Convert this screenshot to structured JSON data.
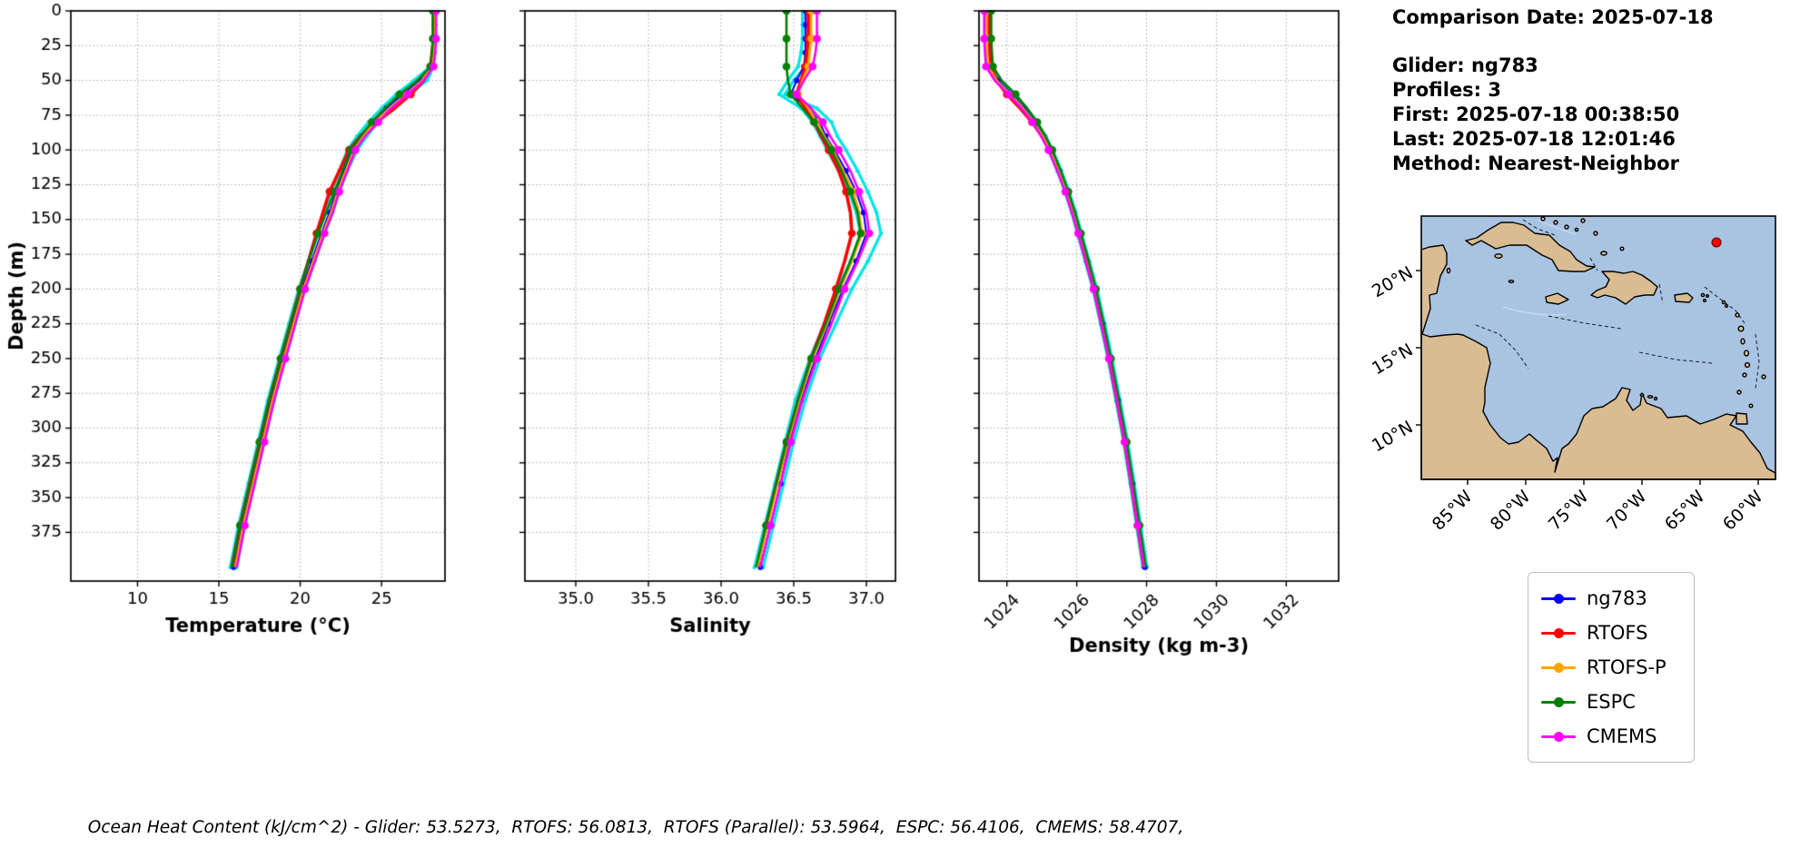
{
  "info": {
    "comparison_date": "Comparison Date: 2025-07-18",
    "glider": "Glider: ng783",
    "profiles": "Profiles: 3",
    "first": "First: 2025-07-18 00:38:50",
    "last": "Last: 2025-07-18 12:01:46",
    "method": "Method: Nearest-Neighbor"
  },
  "caption": "Ocean Heat Content (kJ/cm^2) - Glider: 53.5273,  RTOFS: 56.0813,  RTOFS (Parallel): 53.5964,  ESPC: 56.4106,  CMEMS: 58.4707,",
  "legend": {
    "items": [
      {
        "label": "ng783",
        "color": "#0000ff"
      },
      {
        "label": "RTOFS",
        "color": "#ff0000"
      },
      {
        "label": "RTOFS-P",
        "color": "#ffa500"
      },
      {
        "label": "ESPC",
        "color": "#008000"
      },
      {
        "label": "CMEMS",
        "color": "#ff00ff"
      }
    ]
  },
  "map": {
    "lat_ticks": [
      "20°N",
      "15°N",
      "10°N"
    ],
    "lon_ticks": [
      "85°W",
      "80°W",
      "75°W",
      "70°W",
      "65°W",
      "60°W"
    ],
    "extent": {
      "lon_min": -89,
      "lon_max": -58.5,
      "lat_min": 6.5,
      "lat_max": 23.5
    },
    "marker": {
      "lon": -63.6,
      "lat": 21.8,
      "color": "#ff0000"
    },
    "ocean_color": "#a9c3e2",
    "land_color": "#d9bc92"
  },
  "chart_data": [
    {
      "type": "line",
      "title": "",
      "xlabel": "Temperature (°C)",
      "ylabel": "Depth (m)",
      "xlim": [
        5.9,
        28.9
      ],
      "ylim": [
        0,
        410
      ],
      "xticks": [
        10,
        15,
        20,
        25
      ],
      "xtick_labels": [
        "10",
        "15",
        "20",
        "25"
      ],
      "yticks": [
        0,
        25,
        50,
        75,
        100,
        125,
        150,
        175,
        200,
        225,
        250,
        275,
        300,
        325,
        350,
        375
      ],
      "show_ytick_labels": true,
      "xtick_rotation": 0,
      "grid": true,
      "depths": [
        0,
        10,
        20,
        30,
        40,
        50,
        60,
        70,
        80,
        90,
        100,
        115,
        130,
        145,
        160,
        180,
        200,
        225,
        250,
        280,
        310,
        340,
        370,
        400
      ],
      "series": [
        {
          "name": "glider-profile-a",
          "in_legend": false,
          "color": "#00e5e5",
          "line_width": 3.2,
          "marker_size": 2.2,
          "marker_every": 1,
          "values": [
            28.3,
            28.3,
            28.3,
            28.25,
            28.2,
            27.8,
            26.7,
            25.6,
            24.8,
            24.1,
            23.5,
            22.9,
            22.4,
            22.0,
            21.5,
            20.9,
            20.3,
            19.7,
            19.1,
            18.4,
            17.8,
            17.2,
            16.6,
            16.1
          ]
        },
        {
          "name": "glider-profile-b",
          "in_legend": false,
          "color": "#00e5e5",
          "line_width": 3.2,
          "marker_size": 2.2,
          "marker_every": 1,
          "values": [
            28.2,
            28.2,
            28.2,
            28.15,
            28.0,
            27.0,
            25.9,
            25.0,
            24.2,
            23.5,
            22.9,
            22.4,
            21.9,
            21.5,
            21.1,
            20.5,
            19.9,
            19.3,
            18.7,
            18.0,
            17.4,
            16.8,
            16.2,
            15.7
          ]
        },
        {
          "name": "ng783",
          "in_legend": true,
          "color": "#0000ff",
          "line_width": 2.0,
          "marker_size": 3.1,
          "marker_every": 1,
          "values": [
            28.25,
            28.25,
            28.25,
            28.2,
            28.1,
            27.4,
            26.3,
            25.3,
            24.5,
            23.8,
            23.2,
            22.7,
            22.2,
            21.8,
            21.3,
            20.7,
            20.1,
            19.5,
            18.9,
            18.2,
            17.6,
            17.0,
            16.4,
            15.9
          ]
        },
        {
          "name": "RTOFS",
          "in_legend": true,
          "color": "#ff0000",
          "line_width": 3.6,
          "marker_size": 4.3,
          "marker_every": 2,
          "values": [
            28.2,
            28.2,
            28.2,
            28.1,
            28.0,
            27.6,
            26.8,
            25.8,
            24.7,
            23.7,
            23.0,
            22.4,
            21.8,
            21.4,
            21.0,
            20.5,
            20.0,
            19.4,
            18.8,
            18.1,
            17.5,
            16.9,
            16.3,
            15.8
          ]
        },
        {
          "name": "RTOFS-P",
          "in_legend": true,
          "color": "#ffa500",
          "line_width": 2.6,
          "marker_size": 4.3,
          "marker_every": 2,
          "values": [
            28.3,
            28.3,
            28.3,
            28.2,
            28.1,
            27.5,
            26.5,
            25.5,
            24.6,
            23.9,
            23.3,
            22.8,
            22.3,
            21.9,
            21.4,
            20.8,
            20.2,
            19.6,
            19.0,
            18.3,
            17.7,
            17.1,
            16.5,
            16.0
          ]
        },
        {
          "name": "ESPC",
          "in_legend": true,
          "color": "#008000",
          "line_width": 2.6,
          "marker_size": 4.3,
          "marker_every": 2,
          "values": [
            28.15,
            28.15,
            28.15,
            28.1,
            28.0,
            27.2,
            26.1,
            25.2,
            24.4,
            23.7,
            23.1,
            22.6,
            22.1,
            21.6,
            21.1,
            20.5,
            20.0,
            19.4,
            18.8,
            18.1,
            17.5,
            16.9,
            16.3,
            15.8
          ]
        },
        {
          "name": "CMEMS",
          "in_legend": true,
          "color": "#ff00ff",
          "line_width": 2.6,
          "marker_size": 4.3,
          "marker_every": 2,
          "values": [
            28.35,
            28.35,
            28.35,
            28.3,
            28.2,
            27.6,
            26.6,
            25.6,
            24.8,
            24.0,
            23.4,
            22.9,
            22.4,
            22.0,
            21.5,
            20.9,
            20.3,
            19.7,
            19.1,
            18.4,
            17.8,
            17.2,
            16.6,
            16.1
          ]
        }
      ]
    },
    {
      "type": "line",
      "title": "",
      "xlabel": "Salinity",
      "ylabel": "",
      "xlim": [
        34.65,
        37.2
      ],
      "ylim": [
        0,
        410
      ],
      "xticks": [
        35.0,
        35.5,
        36.0,
        36.5,
        37.0
      ],
      "xtick_labels": [
        "35.0",
        "35.5",
        "36.0",
        "36.5",
        "37.0"
      ],
      "yticks": [
        0,
        25,
        50,
        75,
        100,
        125,
        150,
        175,
        200,
        225,
        250,
        275,
        300,
        325,
        350,
        375
      ],
      "show_ytick_labels": false,
      "xtick_rotation": 0,
      "grid": true,
      "depths": [
        0,
        10,
        20,
        30,
        40,
        50,
        60,
        70,
        80,
        90,
        100,
        115,
        130,
        145,
        160,
        180,
        200,
        225,
        250,
        280,
        310,
        340,
        370,
        400
      ],
      "series": [
        {
          "name": "glider-profile-a",
          "in_legend": false,
          "color": "#00e5e5",
          "line_width": 3.2,
          "marker_size": 2.2,
          "marker_every": 1,
          "values": [
            36.6,
            36.6,
            36.6,
            36.6,
            36.58,
            36.5,
            36.44,
            36.66,
            36.76,
            36.8,
            36.86,
            36.94,
            37.01,
            37.07,
            37.1,
            37.01,
            36.9,
            36.79,
            36.68,
            36.58,
            36.5,
            36.43,
            36.36,
            36.29
          ]
        },
        {
          "name": "glider-profile-b",
          "in_legend": false,
          "color": "#00e5e5",
          "line_width": 3.2,
          "marker_size": 2.2,
          "marker_every": 1,
          "values": [
            36.56,
            36.56,
            36.56,
            36.55,
            36.53,
            36.46,
            36.4,
            36.55,
            36.63,
            36.68,
            36.73,
            36.81,
            36.88,
            36.93,
            36.96,
            36.89,
            36.8,
            36.71,
            36.61,
            36.51,
            36.44,
            36.37,
            36.3,
            36.23
          ]
        },
        {
          "name": "ng783",
          "in_legend": true,
          "color": "#0000ff",
          "line_width": 2.0,
          "marker_size": 3.1,
          "marker_every": 1,
          "values": [
            36.58,
            36.58,
            36.58,
            36.58,
            36.57,
            36.52,
            36.48,
            36.6,
            36.68,
            36.72,
            36.78,
            36.86,
            36.93,
            36.98,
            37.0,
            36.93,
            36.84,
            36.74,
            36.65,
            36.55,
            36.47,
            36.41,
            36.34,
            36.27
          ]
        },
        {
          "name": "RTOFS",
          "in_legend": true,
          "color": "#ff0000",
          "line_width": 3.6,
          "marker_size": 4.3,
          "marker_every": 2,
          "values": [
            36.6,
            36.6,
            36.6,
            36.59,
            36.58,
            36.55,
            36.52,
            36.58,
            36.64,
            36.69,
            36.74,
            36.81,
            36.86,
            36.89,
            36.9,
            36.85,
            36.79,
            36.71,
            36.62,
            36.53,
            36.45,
            36.38,
            36.31,
            36.25
          ]
        },
        {
          "name": "RTOFS-P",
          "in_legend": true,
          "color": "#ffa500",
          "line_width": 2.6,
          "marker_size": 4.3,
          "marker_every": 2,
          "values": [
            36.62,
            36.62,
            36.62,
            36.61,
            36.6,
            36.56,
            36.53,
            36.6,
            36.66,
            36.71,
            36.77,
            36.84,
            36.91,
            36.95,
            36.97,
            36.9,
            36.82,
            36.73,
            36.63,
            36.54,
            36.46,
            36.39,
            36.32,
            36.25
          ]
        },
        {
          "name": "ESPC",
          "in_legend": true,
          "color": "#008000",
          "line_width": 2.6,
          "marker_size": 4.3,
          "marker_every": 2,
          "values": [
            36.45,
            36.45,
            36.45,
            36.45,
            36.45,
            36.46,
            36.48,
            36.56,
            36.64,
            36.7,
            36.76,
            36.83,
            36.89,
            36.94,
            36.96,
            36.89,
            36.81,
            36.72,
            36.62,
            36.53,
            36.45,
            36.38,
            36.31,
            36.24
          ]
        },
        {
          "name": "CMEMS",
          "in_legend": true,
          "color": "#ff00ff",
          "line_width": 2.6,
          "marker_size": 4.3,
          "marker_every": 2,
          "values": [
            36.66,
            36.66,
            36.66,
            36.65,
            36.63,
            36.57,
            36.52,
            36.62,
            36.7,
            36.75,
            36.81,
            36.89,
            36.95,
            37.0,
            37.02,
            36.94,
            36.85,
            36.76,
            36.66,
            36.56,
            36.48,
            36.41,
            36.34,
            36.27
          ]
        }
      ]
    },
    {
      "type": "line",
      "title": "",
      "xlabel": "Density (kg m-3)",
      "ylabel": "",
      "xlim": [
        1023.2,
        1033.5
      ],
      "ylim": [
        0,
        410
      ],
      "xticks": [
        1024,
        1026,
        1028,
        1030,
        1032
      ],
      "xtick_labels": [
        "1024",
        "1026",
        "1028",
        "1030",
        "1032"
      ],
      "yticks": [
        0,
        25,
        50,
        75,
        100,
        125,
        150,
        175,
        200,
        225,
        250,
        275,
        300,
        325,
        350,
        375
      ],
      "show_ytick_labels": false,
      "xtick_rotation": 45,
      "grid": true,
      "depths": [
        0,
        10,
        20,
        30,
        40,
        50,
        60,
        70,
        80,
        90,
        100,
        115,
        130,
        145,
        160,
        180,
        200,
        225,
        250,
        280,
        310,
        340,
        370,
        400
      ],
      "series": [
        {
          "name": "glider-profile-a",
          "in_legend": false,
          "color": "#00e5e5",
          "line_width": 3.2,
          "marker_size": 2.2,
          "marker_every": 1,
          "values": [
            1023.4,
            1023.4,
            1023.4,
            1023.42,
            1023.45,
            1023.68,
            1024.08,
            1024.44,
            1024.74,
            1024.99,
            1025.19,
            1025.44,
            1025.66,
            1025.85,
            1026.02,
            1026.24,
            1026.46,
            1026.68,
            1026.89,
            1027.12,
            1027.34,
            1027.53,
            1027.71,
            1027.89
          ]
        },
        {
          "name": "glider-profile-b",
          "in_legend": false,
          "color": "#00e5e5",
          "line_width": 3.2,
          "marker_size": 2.2,
          "marker_every": 1,
          "values": [
            1023.51,
            1023.51,
            1023.51,
            1023.53,
            1023.56,
            1023.82,
            1024.22,
            1024.56,
            1024.86,
            1025.11,
            1025.31,
            1025.56,
            1025.78,
            1025.97,
            1026.14,
            1026.36,
            1026.58,
            1026.8,
            1027.01,
            1027.24,
            1027.46,
            1027.65,
            1027.83,
            1028.01
          ]
        },
        {
          "name": "ng783",
          "in_legend": true,
          "color": "#0000ff",
          "line_width": 2.0,
          "marker_size": 3.1,
          "marker_every": 1,
          "values": [
            1023.45,
            1023.45,
            1023.45,
            1023.47,
            1023.5,
            1023.75,
            1024.15,
            1024.5,
            1024.8,
            1025.05,
            1025.25,
            1025.5,
            1025.72,
            1025.91,
            1026.08,
            1026.3,
            1026.52,
            1026.74,
            1026.95,
            1027.18,
            1027.4,
            1027.59,
            1027.77,
            1027.95
          ]
        },
        {
          "name": "RTOFS",
          "in_legend": true,
          "color": "#ff0000",
          "line_width": 3.6,
          "marker_size": 4.3,
          "marker_every": 2,
          "values": [
            1023.5,
            1023.5,
            1023.5,
            1023.52,
            1023.54,
            1023.7,
            1024.0,
            1024.38,
            1024.72,
            1025.0,
            1025.22,
            1025.47,
            1025.69,
            1025.88,
            1026.05,
            1026.27,
            1026.49,
            1026.71,
            1026.92,
            1027.15,
            1027.37,
            1027.56,
            1027.74,
            1027.92
          ]
        },
        {
          "name": "RTOFS-P",
          "in_legend": true,
          "color": "#ffa500",
          "line_width": 2.6,
          "marker_size": 4.3,
          "marker_every": 2,
          "values": [
            1023.42,
            1023.42,
            1023.42,
            1023.44,
            1023.47,
            1023.7,
            1024.1,
            1024.46,
            1024.77,
            1025.02,
            1025.23,
            1025.48,
            1025.7,
            1025.89,
            1026.06,
            1026.28,
            1026.5,
            1026.72,
            1026.93,
            1027.16,
            1027.38,
            1027.57,
            1027.75,
            1027.93
          ]
        },
        {
          "name": "ESPC",
          "in_legend": true,
          "color": "#008000",
          "line_width": 2.6,
          "marker_size": 4.3,
          "marker_every": 2,
          "values": [
            1023.55,
            1023.55,
            1023.55,
            1023.57,
            1023.6,
            1023.85,
            1024.25,
            1024.58,
            1024.87,
            1025.1,
            1025.3,
            1025.54,
            1025.76,
            1025.95,
            1026.12,
            1026.34,
            1026.55,
            1026.77,
            1026.98,
            1027.21,
            1027.43,
            1027.62,
            1027.8,
            1027.98
          ]
        },
        {
          "name": "CMEMS",
          "in_legend": true,
          "color": "#ff00ff",
          "line_width": 2.6,
          "marker_size": 4.3,
          "marker_every": 2,
          "values": [
            1023.35,
            1023.35,
            1023.35,
            1023.37,
            1023.4,
            1023.65,
            1024.05,
            1024.42,
            1024.73,
            1024.98,
            1025.19,
            1025.44,
            1025.67,
            1025.86,
            1026.04,
            1026.26,
            1026.48,
            1026.7,
            1026.92,
            1027.15,
            1027.37,
            1027.56,
            1027.74,
            1027.92
          ]
        }
      ]
    }
  ]
}
